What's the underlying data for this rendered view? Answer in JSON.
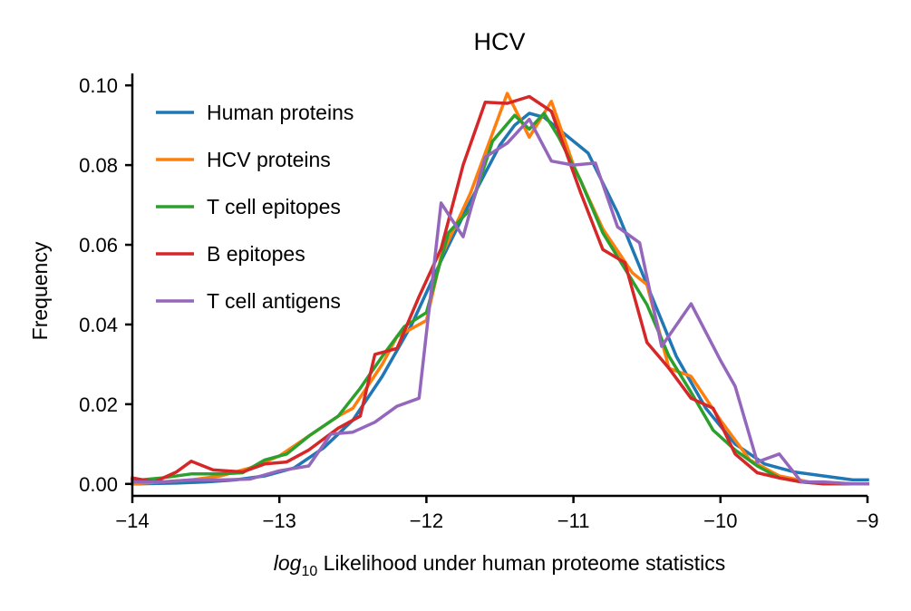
{
  "chart_data": {
    "type": "line",
    "title": "HCV",
    "xlabel_prefix": "log",
    "xlabel_subscript": "10",
    "xlabel_rest": " Likelihood under human proteome statistics",
    "ylabel": "Frequency",
    "xlim": [
      -14,
      -9
    ],
    "ylim": [
      -0.003,
      0.103
    ],
    "x_ticks": [
      -14,
      -13,
      -12,
      -11,
      -10,
      -9
    ],
    "x_tick_labels": [
      "−14",
      "−13",
      "−12",
      "−11",
      "−10",
      "−9"
    ],
    "y_ticks": [
      0.0,
      0.02,
      0.04,
      0.06,
      0.08,
      0.1
    ],
    "y_tick_labels": [
      "0.00",
      "0.02",
      "0.04",
      "0.06",
      "0.08",
      "0.10"
    ],
    "grid": false,
    "legend_position": "upper-left",
    "series": [
      {
        "name": "Human proteins",
        "color": "#1f77b4",
        "x": [
          -14.0,
          -13.7,
          -13.5,
          -13.3,
          -13.1,
          -12.9,
          -12.7,
          -12.5,
          -12.3,
          -12.1,
          -11.9,
          -11.7,
          -11.5,
          -11.4,
          -11.3,
          -11.2,
          -11.1,
          -10.9,
          -10.7,
          -10.5,
          -10.3,
          -10.1,
          -9.9,
          -9.7,
          -9.5,
          -9.3,
          -9.1,
          -9.0
        ],
        "y": [
          0.0,
          0.0002,
          0.0005,
          0.001,
          0.002,
          0.004,
          0.009,
          0.016,
          0.027,
          0.04,
          0.056,
          0.071,
          0.085,
          0.09,
          0.093,
          0.092,
          0.089,
          0.083,
          0.068,
          0.05,
          0.032,
          0.019,
          0.01,
          0.005,
          0.003,
          0.002,
          0.001,
          0.001
        ]
      },
      {
        "name": "HCV proteins",
        "color": "#ff7f0e",
        "x": [
          -14.0,
          -13.8,
          -13.6,
          -13.4,
          -13.2,
          -13.0,
          -12.8,
          -12.6,
          -12.5,
          -12.3,
          -12.2,
          -12.0,
          -11.9,
          -11.7,
          -11.6,
          -11.45,
          -11.3,
          -11.15,
          -11.0,
          -10.8,
          -10.6,
          -10.5,
          -10.35,
          -10.2,
          -10.0,
          -9.8,
          -9.6,
          -9.4,
          -9.2,
          -9.0
        ],
        "y": [
          0.0,
          0.0005,
          0.001,
          0.002,
          0.004,
          0.007,
          0.012,
          0.017,
          0.019,
          0.03,
          0.037,
          0.041,
          0.057,
          0.073,
          0.083,
          0.098,
          0.087,
          0.096,
          0.08,
          0.064,
          0.053,
          0.05,
          0.029,
          0.027,
          0.016,
          0.006,
          0.002,
          0.0005,
          0.0,
          0.0
        ]
      },
      {
        "name": "T cell epitopes",
        "color": "#2ca02c",
        "x": [
          -14.0,
          -13.8,
          -13.6,
          -13.4,
          -13.25,
          -13.1,
          -12.95,
          -12.8,
          -12.6,
          -12.45,
          -12.3,
          -12.15,
          -12.0,
          -11.85,
          -11.7,
          -11.55,
          -11.4,
          -11.3,
          -11.2,
          -11.1,
          -10.95,
          -10.8,
          -10.65,
          -10.5,
          -10.35,
          -10.2,
          -10.05,
          -9.9,
          -9.75,
          -9.6,
          -9.45,
          -9.3,
          -9.1,
          -9.0
        ],
        "y": [
          0.0008,
          0.0015,
          0.0025,
          0.0025,
          0.0028,
          0.006,
          0.0075,
          0.012,
          0.017,
          0.024,
          0.032,
          0.0395,
          0.043,
          0.063,
          0.069,
          0.086,
          0.0925,
          0.089,
          0.093,
          0.087,
          0.076,
          0.063,
          0.054,
          0.045,
          0.032,
          0.023,
          0.0135,
          0.0085,
          0.0045,
          0.0015,
          0.0005,
          0.0001,
          0.0,
          0.0
        ]
      },
      {
        "name": "B epitopes",
        "color": "#d62728",
        "x": [
          -14.0,
          -13.85,
          -13.7,
          -13.6,
          -13.45,
          -13.25,
          -13.1,
          -12.95,
          -12.8,
          -12.6,
          -12.45,
          -12.35,
          -12.2,
          -12.05,
          -11.9,
          -11.75,
          -11.6,
          -11.45,
          -11.3,
          -11.15,
          -10.95,
          -10.8,
          -10.65,
          -10.5,
          -10.35,
          -10.2,
          -10.05,
          -9.9,
          -9.75,
          -9.6,
          -9.45,
          -9.3,
          -9.1,
          -9.0
        ],
        "y": [
          0.0015,
          0.0005,
          0.003,
          0.0057,
          0.0035,
          0.003,
          0.005,
          0.0055,
          0.0085,
          0.014,
          0.017,
          0.0325,
          0.034,
          0.047,
          0.059,
          0.08,
          0.0958,
          0.0955,
          0.0972,
          0.0935,
          0.073,
          0.0588,
          0.0555,
          0.0355,
          0.029,
          0.0215,
          0.019,
          0.0075,
          0.0028,
          0.0015,
          0.0005,
          0.0,
          0.0,
          0.0
        ]
      },
      {
        "name": "T cell antigens",
        "color": "#9467bd",
        "x": [
          -14.0,
          -13.8,
          -13.6,
          -13.4,
          -13.2,
          -13.0,
          -12.8,
          -12.65,
          -12.5,
          -12.35,
          -12.2,
          -12.05,
          -11.9,
          -11.75,
          -11.6,
          -11.45,
          -11.3,
          -11.15,
          -11.0,
          -10.85,
          -10.7,
          -10.55,
          -10.4,
          -10.2,
          -10.0,
          -9.9,
          -9.75,
          -9.6,
          -9.45,
          -9.3,
          -9.1,
          -9.0
        ],
        "y": [
          0.0005,
          0.0005,
          0.001,
          0.001,
          0.0012,
          0.0033,
          0.0045,
          0.0125,
          0.013,
          0.0155,
          0.0195,
          0.0215,
          0.0705,
          0.062,
          0.082,
          0.0855,
          0.0915,
          0.081,
          0.08,
          0.0805,
          0.0645,
          0.0605,
          0.0345,
          0.0452,
          0.031,
          0.0245,
          0.0055,
          0.0075,
          0.0005,
          0.0005,
          0.0,
          0.0
        ]
      }
    ]
  }
}
